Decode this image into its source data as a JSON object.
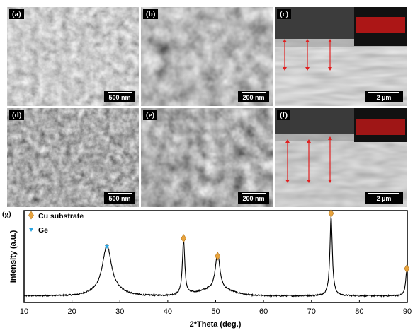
{
  "figure": {
    "panels": [
      {
        "id": "a",
        "label": "(a)",
        "scale": "500 nm"
      },
      {
        "id": "b",
        "label": "(b)",
        "scale": "200 nm"
      },
      {
        "id": "c",
        "label": "(c)",
        "scale": "2 µm"
      },
      {
        "id": "d",
        "label": "(d)",
        "scale": "500 nm"
      },
      {
        "id": "e",
        "label": "(e)",
        "scale": "200 nm"
      },
      {
        "id": "f",
        "label": "(f)",
        "scale": "2 µm"
      }
    ],
    "xrd_label": "(g)"
  },
  "chart_data": {
    "type": "line",
    "xlabel": "2*Theta (deg.)",
    "ylabel": "Intensity (a.u.)",
    "xlim": [
      10,
      90
    ],
    "xticks": [
      10,
      20,
      30,
      40,
      50,
      60,
      70,
      80,
      90
    ],
    "legend": [
      {
        "name": "Cu substrate",
        "marker": "diamond",
        "color": "#e8a33d"
      },
      {
        "name": "Ge",
        "marker": "triangle-down",
        "color": "#2aa4e0"
      }
    ],
    "peaks": [
      {
        "x": 27.3,
        "height": 0.52,
        "width": 1.1,
        "phase": "Ge"
      },
      {
        "x": 43.3,
        "height": 0.62,
        "width": 0.3,
        "phase": "Cu substrate"
      },
      {
        "x": 50.4,
        "height": 0.42,
        "width": 0.55,
        "phase": "Cu substrate"
      },
      {
        "x": 74.1,
        "height": 0.9,
        "width": 0.3,
        "phase": "Cu substrate"
      },
      {
        "x": 89.9,
        "height": 0.28,
        "width": 0.3,
        "phase": "Cu substrate"
      }
    ]
  }
}
